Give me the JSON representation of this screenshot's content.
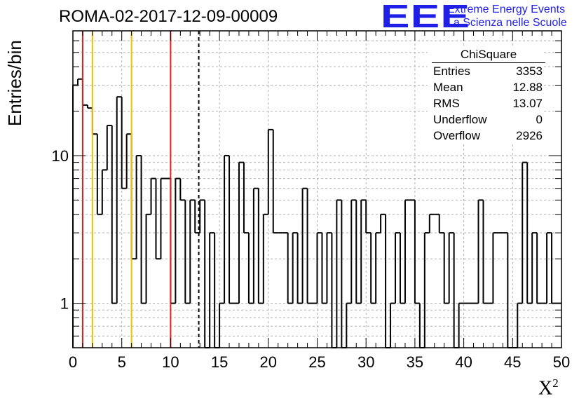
{
  "header": {
    "title": "ROMA-02-2017-12-09-00009",
    "logo_text": "EEE",
    "logo_line1": "Extreme Energy Events",
    "logo_line2": "La Scienza nelle Scuole"
  },
  "stats_box": {
    "title": "ChiSquare",
    "rows": [
      {
        "label": "Entries",
        "value": "3353"
      },
      {
        "label": "Mean",
        "value": "12.88"
      },
      {
        "label": "RMS",
        "value": "13.07"
      },
      {
        "label": "Underflow",
        "value": "0"
      },
      {
        "label": "Overflow",
        "value": "2926"
      }
    ]
  },
  "colors": {
    "histogram": "#000000",
    "red_line": "#e02020",
    "yellow_line": "#f0c000",
    "grid": "#b0b0b0",
    "logo": "#1f1fe6"
  },
  "chart_data": {
    "type": "bar",
    "title": "ROMA-02-2017-12-09-00009",
    "xlabel": "X²",
    "ylabel": "Entries/bin",
    "xlim": [
      0,
      50
    ],
    "ylim": [
      0.5,
      70
    ],
    "yscale": "log",
    "grid": true,
    "bin_width": 0.5,
    "x_ticks": [
      "0",
      "5",
      "10",
      "15",
      "20",
      "25",
      "30",
      "35",
      "40",
      "45",
      "50"
    ],
    "y_ticks": [
      {
        "value": 1,
        "label": "1"
      },
      {
        "value": 10,
        "label": "10"
      }
    ],
    "values": [
      30,
      33,
      22,
      21,
      14,
      4,
      8,
      16,
      1,
      25,
      6,
      14,
      2,
      10,
      1,
      4,
      7,
      2,
      7,
      7,
      1,
      7,
      5,
      1,
      5,
      3,
      5,
      0,
      3,
      0,
      1,
      10,
      1,
      1,
      9,
      3,
      1,
      6,
      1,
      4,
      15,
      3,
      3,
      3,
      1,
      3,
      1,
      6,
      1,
      1,
      3,
      1,
      3,
      0,
      5,
      0,
      1,
      5,
      1,
      5,
      3,
      1,
      3,
      4,
      0,
      1,
      3,
      1,
      5,
      5,
      1,
      0,
      3,
      4,
      4,
      3,
      1,
      3,
      0,
      1,
      1,
      1,
      1,
      5,
      1,
      1,
      3,
      3,
      3,
      0,
      0,
      1,
      9,
      1,
      3,
      1,
      1,
      3,
      1,
      1
    ],
    "vertical_lines": [
      {
        "x": 1,
        "color": "red",
        "style": "solid"
      },
      {
        "x": 2,
        "color": "yellow",
        "style": "solid"
      },
      {
        "x": 6,
        "color": "yellow",
        "style": "solid"
      },
      {
        "x": 10,
        "color": "red",
        "style": "solid"
      },
      {
        "x": 12.88,
        "color": "black",
        "style": "dashed"
      }
    ]
  }
}
